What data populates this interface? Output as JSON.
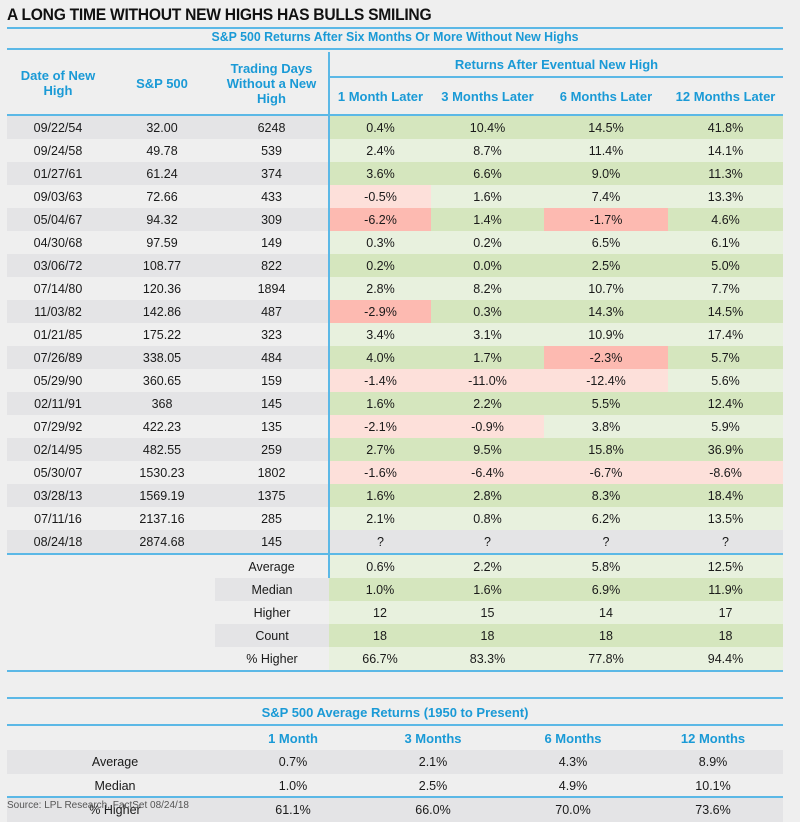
{
  "title": "A LONG TIME WITHOUT NEW HIGHS HAS BULLS SMILING",
  "source": "Source: LPL Research, FactSet   08/24/18",
  "chart_data": {
    "type": "table",
    "title": "S&P 500 Returns After Six Months Or More Without New Highs",
    "group_header": "Returns After Eventual New High",
    "columns": [
      "Date of New High",
      "S&P 500",
      "Trading Days Without a New High",
      "1 Month Later",
      "3 Months Later",
      "6 Months Later",
      "12 Months Later"
    ],
    "rows": [
      {
        "date": "09/22/54",
        "spx": "32.00",
        "days": "6248",
        "m1": "0.4%",
        "m3": "10.4%",
        "m6": "14.5%",
        "m12": "41.8%"
      },
      {
        "date": "09/24/58",
        "spx": "49.78",
        "days": "539",
        "m1": "2.4%",
        "m3": "8.7%",
        "m6": "11.4%",
        "m12": "14.1%"
      },
      {
        "date": "01/27/61",
        "spx": "61.24",
        "days": "374",
        "m1": "3.6%",
        "m3": "6.6%",
        "m6": "9.0%",
        "m12": "11.3%"
      },
      {
        "date": "09/03/63",
        "spx": "72.66",
        "days": "433",
        "m1": "-0.5%",
        "m3": "1.6%",
        "m6": "7.4%",
        "m12": "13.3%"
      },
      {
        "date": "05/04/67",
        "spx": "94.32",
        "days": "309",
        "m1": "-6.2%",
        "m3": "1.4%",
        "m6": "-1.7%",
        "m12": "4.6%"
      },
      {
        "date": "04/30/68",
        "spx": "97.59",
        "days": "149",
        "m1": "0.3%",
        "m3": "0.2%",
        "m6": "6.5%",
        "m12": "6.1%"
      },
      {
        "date": "03/06/72",
        "spx": "108.77",
        "days": "822",
        "m1": "0.2%",
        "m3": "0.0%",
        "m6": "2.5%",
        "m12": "5.0%"
      },
      {
        "date": "07/14/80",
        "spx": "120.36",
        "days": "1894",
        "m1": "2.8%",
        "m3": "8.2%",
        "m6": "10.7%",
        "m12": "7.7%"
      },
      {
        "date": "11/03/82",
        "spx": "142.86",
        "days": "487",
        "m1": "-2.9%",
        "m3": "0.3%",
        "m6": "14.3%",
        "m12": "14.5%"
      },
      {
        "date": "01/21/85",
        "spx": "175.22",
        "days": "323",
        "m1": "3.4%",
        "m3": "3.1%",
        "m6": "10.9%",
        "m12": "17.4%"
      },
      {
        "date": "07/26/89",
        "spx": "338.05",
        "days": "484",
        "m1": "4.0%",
        "m3": "1.7%",
        "m6": "-2.3%",
        "m12": "5.7%"
      },
      {
        "date": "05/29/90",
        "spx": "360.65",
        "days": "159",
        "m1": "-1.4%",
        "m3": "-11.0%",
        "m6": "-12.4%",
        "m12": "5.6%"
      },
      {
        "date": "02/11/91",
        "spx": "368",
        "days": "145",
        "m1": "1.6%",
        "m3": "2.2%",
        "m6": "5.5%",
        "m12": "12.4%"
      },
      {
        "date": "07/29/92",
        "spx": "422.23",
        "days": "135",
        "m1": "-2.1%",
        "m3": "-0.9%",
        "m6": "3.8%",
        "m12": "5.9%"
      },
      {
        "date": "02/14/95",
        "spx": "482.55",
        "days": "259",
        "m1": "2.7%",
        "m3": "9.5%",
        "m6": "15.8%",
        "m12": "36.9%"
      },
      {
        "date": "05/30/07",
        "spx": "1530.23",
        "days": "1802",
        "m1": "-1.6%",
        "m3": "-6.4%",
        "m6": "-6.7%",
        "m12": "-8.6%"
      },
      {
        "date": "03/28/13",
        "spx": "1569.19",
        "days": "1375",
        "m1": "1.6%",
        "m3": "2.8%",
        "m6": "8.3%",
        "m12": "18.4%"
      },
      {
        "date": "07/11/16",
        "spx": "2137.16",
        "days": "285",
        "m1": "2.1%",
        "m3": "0.8%",
        "m6": "6.2%",
        "m12": "13.5%"
      },
      {
        "date": "08/24/18",
        "spx": "2874.68",
        "days": "145",
        "m1": "?",
        "m3": "?",
        "m6": "?",
        "m12": "?"
      }
    ],
    "summary": [
      {
        "label": "Average",
        "m1": "0.6%",
        "m3": "2.2%",
        "m6": "5.8%",
        "m12": "12.5%"
      },
      {
        "label": "Median",
        "m1": "1.0%",
        "m3": "1.6%",
        "m6": "6.9%",
        "m12": "11.9%"
      },
      {
        "label": "Higher",
        "m1": "12",
        "m3": "15",
        "m6": "14",
        "m12": "17"
      },
      {
        "label": "Count",
        "m1": "18",
        "m3": "18",
        "m6": "18",
        "m12": "18"
      },
      {
        "label": "% Higher",
        "m1": "66.7%",
        "m3": "83.3%",
        "m6": "77.8%",
        "m12": "94.4%"
      }
    ],
    "benchmark": {
      "title": "S&P 500 Average Returns (1950 to Present)",
      "columns": [
        "1 Month",
        "3 Months",
        "6 Months",
        "12 Months"
      ],
      "rows": [
        {
          "label": "Average",
          "values": [
            "0.7%",
            "2.1%",
            "4.3%",
            "8.9%"
          ]
        },
        {
          "label": "Median",
          "values": [
            "1.0%",
            "2.5%",
            "4.9%",
            "10.1%"
          ]
        },
        {
          "label": "% Higher",
          "values": [
            "61.1%",
            "66.0%",
            "70.0%",
            "73.6%"
          ]
        }
      ]
    }
  }
}
